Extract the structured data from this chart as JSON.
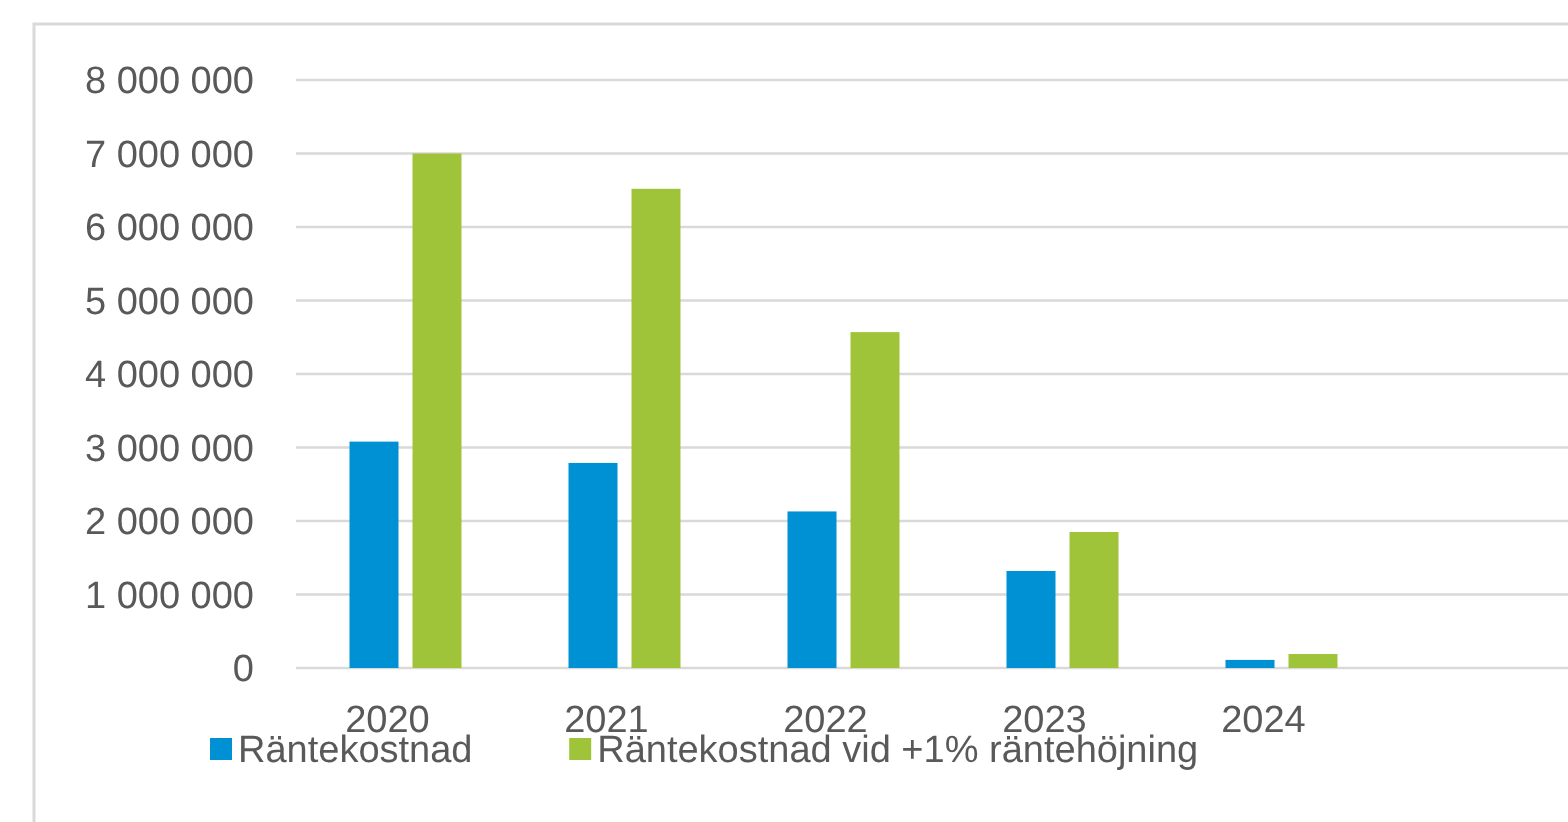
{
  "chart_data": {
    "type": "bar",
    "categories": [
      "2020",
      "2021",
      "2022",
      "2023",
      "2024",
      null
    ],
    "series": [
      {
        "name": "Räntekostnad",
        "color": "#0090d4",
        "values": [
          3080000,
          2790000,
          2130000,
          1320000,
          110000,
          null
        ]
      },
      {
        "name": "Räntekostnad vid +1% räntehöjning",
        "color": "#9fc43a",
        "values": [
          7000000,
          6520000,
          4570000,
          1850000,
          190000,
          null
        ]
      }
    ],
    "ylim": [
      0,
      8000000
    ],
    "yticks": [
      {
        "value": 0,
        "label": "0"
      },
      {
        "value": 1000000,
        "label": "1 000 000"
      },
      {
        "value": 2000000,
        "label": "2 000 000"
      },
      {
        "value": 3000000,
        "label": "3 000 000"
      },
      {
        "value": 4000000,
        "label": "4 000 000"
      },
      {
        "value": 5000000,
        "label": "5 000 000"
      },
      {
        "value": 6000000,
        "label": "6 000 000"
      },
      {
        "value": 7000000,
        "label": "7 000 000"
      },
      {
        "value": 8000000,
        "label": "8 000 000"
      }
    ],
    "grid": "y",
    "legend": "bottom left"
  }
}
